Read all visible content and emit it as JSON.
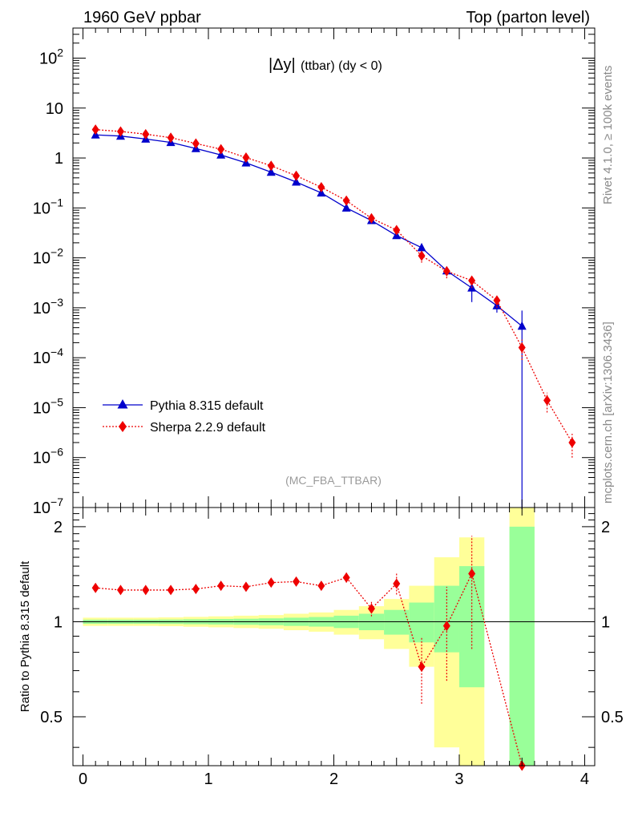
{
  "header": {
    "left_label": "1960 GeV ppbar",
    "right_label": "Top (parton level)"
  },
  "side_labels": {
    "rivet": "Rivet 4.1.0, ≥ 100k events",
    "mcplots": "mcplots.cern.ch [arXiv:1306.3436]"
  },
  "chart_data": [
    {
      "type": "line",
      "role": "main",
      "title": "|Δy| (ttbar) (dy < 0)",
      "title_parts": {
        "symbol": "|Δy|",
        "rest": "(ttbar) (dy < 0)"
      },
      "analysis_label": "(MC_FBA_TTBAR)",
      "xlabel": "",
      "ylabel": "",
      "xlim": [
        -0.08,
        4.08
      ],
      "ylim": [
        1e-07,
        400
      ],
      "yscale": "log",
      "y_tick_labels": [
        {
          "value": 1e-07,
          "base": "10",
          "exp": "−7"
        },
        {
          "value": 1e-06,
          "base": "10",
          "exp": "−6"
        },
        {
          "value": 1e-05,
          "base": "10",
          "exp": "−5"
        },
        {
          "value": 0.0001,
          "base": "10",
          "exp": "−4"
        },
        {
          "value": 0.001,
          "base": "10",
          "exp": "−3"
        },
        {
          "value": 0.01,
          "base": "10",
          "exp": "−2"
        },
        {
          "value": 0.1,
          "base": "10",
          "exp": "−1"
        },
        {
          "value": 1,
          "base": "1",
          "exp": ""
        },
        {
          "value": 10,
          "base": "10",
          "exp": ""
        },
        {
          "value": 100,
          "base": "10",
          "exp": "2"
        }
      ],
      "legend": {
        "position": "lower-left",
        "entries": [
          "Pythia 8.315 default",
          "Sherpa 2.2.9 default"
        ]
      },
      "series": [
        {
          "name": "Pythia 8.315 default",
          "color": "#0000cc",
          "marker": "triangle",
          "line": "solid",
          "x": [
            0.1,
            0.3,
            0.5,
            0.7,
            0.9,
            1.1,
            1.3,
            1.5,
            1.7,
            1.9,
            2.1,
            2.3,
            2.5,
            2.7,
            2.9,
            3.1,
            3.3,
            3.5
          ],
          "y": [
            2.9,
            2.75,
            2.4,
            2.05,
            1.55,
            1.15,
            0.8,
            0.52,
            0.33,
            0.2,
            0.1,
            0.056,
            0.028,
            0.016,
            0.0055,
            0.0025,
            0.0011,
            0.00043
          ],
          "err_low": [
            0.03,
            0.03,
            0.02,
            0.02,
            0.02,
            0.01,
            0.01,
            0.01,
            0.005,
            0.004,
            0.002,
            0.002,
            0.001,
            0.0015,
            0.001,
            0.0012,
            0.0003,
            0.00043
          ],
          "err_high": [
            0.03,
            0.03,
            0.02,
            0.02,
            0.02,
            0.01,
            0.01,
            0.01,
            0.005,
            0.004,
            0.002,
            0.002,
            0.001,
            0.0015,
            0.001,
            0.0012,
            0.0003,
            0.00045
          ]
        },
        {
          "name": "Sherpa 2.2.9 default",
          "color": "#ee0000",
          "marker": "diamond",
          "line": "dotted",
          "x": [
            0.1,
            0.3,
            0.5,
            0.7,
            0.9,
            1.1,
            1.3,
            1.5,
            1.7,
            1.9,
            2.1,
            2.3,
            2.5,
            2.7,
            2.9,
            3.1,
            3.3,
            3.5,
            3.7,
            3.9
          ],
          "y": [
            3.7,
            3.4,
            3.0,
            2.55,
            1.95,
            1.5,
            1.02,
            0.7,
            0.44,
            0.26,
            0.14,
            0.062,
            0.036,
            0.011,
            0.0054,
            0.0035,
            0.0014,
            0.00016,
            1.4e-05,
            2e-06
          ],
          "err_low": [
            0.1,
            0.08,
            0.07,
            0.06,
            0.05,
            0.04,
            0.03,
            0.02,
            0.015,
            0.01,
            0.008,
            0.005,
            0.004,
            0.003,
            0.0015,
            0.001,
            0.0004,
            7e-05,
            6e-06,
            1e-06
          ],
          "err_high": [
            0.1,
            0.08,
            0.07,
            0.06,
            0.05,
            0.04,
            0.03,
            0.02,
            0.015,
            0.01,
            0.008,
            0.005,
            0.004,
            0.003,
            0.0015,
            0.001,
            0.0004,
            7e-05,
            6e-06,
            1e-06
          ]
        }
      ]
    },
    {
      "type": "line",
      "role": "ratio",
      "ylabel": "Ratio to Pythia 8.315 default",
      "xlabel": "",
      "xlim": [
        -0.08,
        4.08
      ],
      "ylim": [
        0.35,
        2.3
      ],
      "yscale": "log",
      "reference_line": 1,
      "x_ticks": [
        0,
        1,
        2,
        3,
        4
      ],
      "x_tick_labels": [
        "0",
        "1",
        "2",
        "3",
        "4"
      ],
      "y_ticks": [
        0.5,
        1,
        2
      ],
      "y_tick_labels": [
        "0.5",
        "1",
        "2"
      ],
      "band_edges": [
        0,
        0.2,
        0.4,
        0.6,
        0.8,
        1.0,
        1.2,
        1.4,
        1.6,
        1.8,
        2.0,
        2.2,
        2.4,
        2.6,
        2.8,
        3.0,
        3.2,
        3.4,
        3.6
      ],
      "band_green_low": [
        0.985,
        0.985,
        0.985,
        0.984,
        0.982,
        0.98,
        0.978,
        0.975,
        0.97,
        0.965,
        0.955,
        0.94,
        0.91,
        0.86,
        0.8,
        0.62,
        null,
        0.0,
        null
      ],
      "band_green_high": [
        1.015,
        1.015,
        1.015,
        1.016,
        1.018,
        1.02,
        1.022,
        1.025,
        1.03,
        1.035,
        1.045,
        1.06,
        1.09,
        1.15,
        1.3,
        1.5,
        null,
        2.0,
        null
      ],
      "band_yellow_low": [
        0.97,
        0.97,
        0.97,
        0.968,
        0.964,
        0.96,
        0.955,
        0.95,
        0.94,
        0.93,
        0.91,
        0.88,
        0.82,
        0.72,
        0.4,
        0.33,
        null,
        0.0,
        null
      ],
      "band_yellow_high": [
        1.03,
        1.03,
        1.03,
        1.032,
        1.036,
        1.04,
        1.045,
        1.05,
        1.06,
        1.07,
        1.09,
        1.12,
        1.18,
        1.3,
        1.6,
        1.85,
        null,
        2.6,
        null
      ],
      "series": [
        {
          "name": "Sherpa 2.2.9 default",
          "color": "#ee0000",
          "marker": "diamond",
          "line": "dotted",
          "x": [
            0.1,
            0.3,
            0.5,
            0.7,
            0.9,
            1.1,
            1.3,
            1.5,
            1.7,
            1.9,
            2.1,
            2.3,
            2.5,
            2.7,
            2.9,
            3.1,
            3.5
          ],
          "y": [
            1.28,
            1.26,
            1.26,
            1.26,
            1.27,
            1.3,
            1.29,
            1.33,
            1.34,
            1.3,
            1.38,
            1.1,
            1.32,
            0.72,
            0.97,
            1.42,
            0.35
          ],
          "err_low": [
            0.02,
            0.02,
            0.02,
            0.02,
            0.02,
            0.02,
            0.02,
            0.03,
            0.04,
            0.04,
            0.05,
            0.06,
            0.1,
            0.17,
            0.32,
            0.6,
            0.0
          ],
          "err_high": [
            0.02,
            0.02,
            0.02,
            0.02,
            0.02,
            0.02,
            0.02,
            0.03,
            0.04,
            0.04,
            0.05,
            0.06,
            0.1,
            0.17,
            0.32,
            0.45,
            0.0
          ]
        }
      ]
    }
  ]
}
